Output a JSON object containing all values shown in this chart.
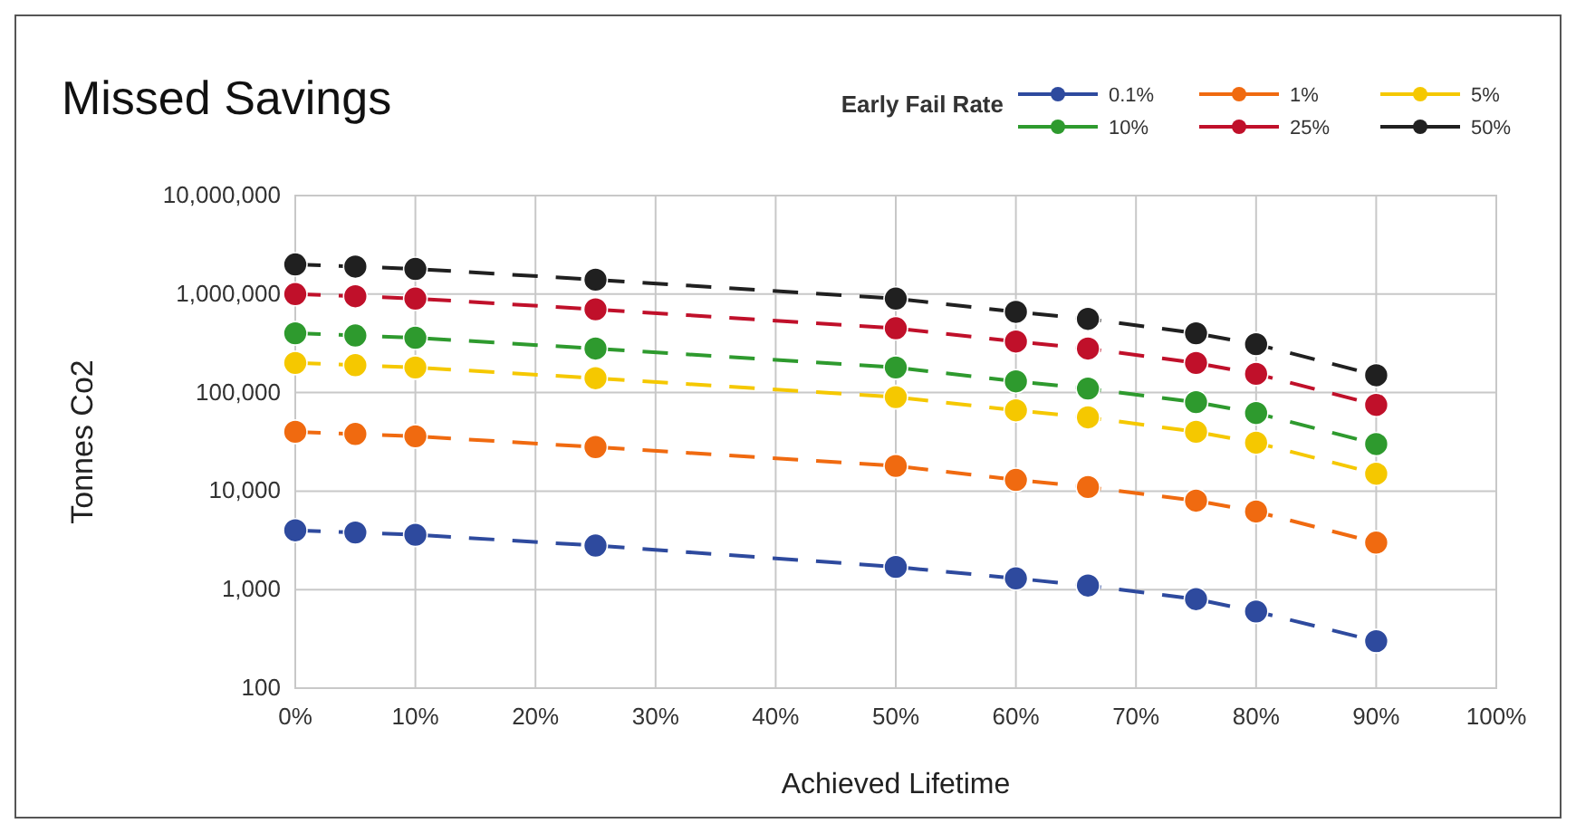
{
  "chart_data": {
    "type": "line",
    "title": "Missed Savings",
    "xlabel": "Achieved Lifetime",
    "ylabel": "Tonnes Co2",
    "legend_title": "Early Fail Rate",
    "legend": "top right",
    "grid": true,
    "log": "y",
    "marker": "circle",
    "line_style": "dashed",
    "x": [
      0,
      5,
      10,
      25,
      50,
      60,
      66,
      75,
      80,
      90
    ],
    "xlim": [
      0,
      100
    ],
    "xticks": [
      {
        "value": 0,
        "label": "0%"
      },
      {
        "value": 10,
        "label": "10%"
      },
      {
        "value": 20,
        "label": "20%"
      },
      {
        "value": 30,
        "label": "30%"
      },
      {
        "value": 40,
        "label": "40%"
      },
      {
        "value": 50,
        "label": "50%"
      },
      {
        "value": 60,
        "label": "60%"
      },
      {
        "value": 70,
        "label": "70%"
      },
      {
        "value": 80,
        "label": "80%"
      },
      {
        "value": 90,
        "label": "90%"
      },
      {
        "value": 100,
        "label": "100%"
      }
    ],
    "ylim": [
      100,
      10000000
    ],
    "yticks": [
      {
        "value": 100,
        "label": "100"
      },
      {
        "value": 1000,
        "label": "1,000"
      },
      {
        "value": 10000,
        "label": "10,000"
      },
      {
        "value": 100000,
        "label": "100,000"
      },
      {
        "value": 1000000,
        "label": "1,000,000"
      },
      {
        "value": 10000000,
        "label": "10,000,000"
      }
    ],
    "series": [
      {
        "name": "0.1%",
        "color": "#2e4a9e",
        "values": [
          4000,
          3800,
          3600,
          2800,
          1700,
          1300,
          1100,
          800,
          600,
          300
        ]
      },
      {
        "name": "1%",
        "color": "#f06a10",
        "values": [
          40000,
          38000,
          36000,
          28000,
          18000,
          13000,
          11000,
          8000,
          6200,
          3000
        ]
      },
      {
        "name": "5%",
        "color": "#f5c800",
        "values": [
          200000,
          190000,
          180000,
          140000,
          90000,
          66000,
          56000,
          40000,
          31000,
          15000
        ]
      },
      {
        "name": "10%",
        "color": "#2e9a2e",
        "values": [
          400000,
          380000,
          360000,
          280000,
          180000,
          130000,
          110000,
          80000,
          62000,
          30000
        ]
      },
      {
        "name": "25%",
        "color": "#c0102a",
        "values": [
          1000000,
          950000,
          900000,
          700000,
          450000,
          330000,
          280000,
          200000,
          155000,
          75000
        ]
      },
      {
        "name": "50%",
        "color": "#202020",
        "values": [
          2000000,
          1900000,
          1800000,
          1400000,
          900000,
          660000,
          560000,
          400000,
          310000,
          150000
        ]
      }
    ]
  }
}
